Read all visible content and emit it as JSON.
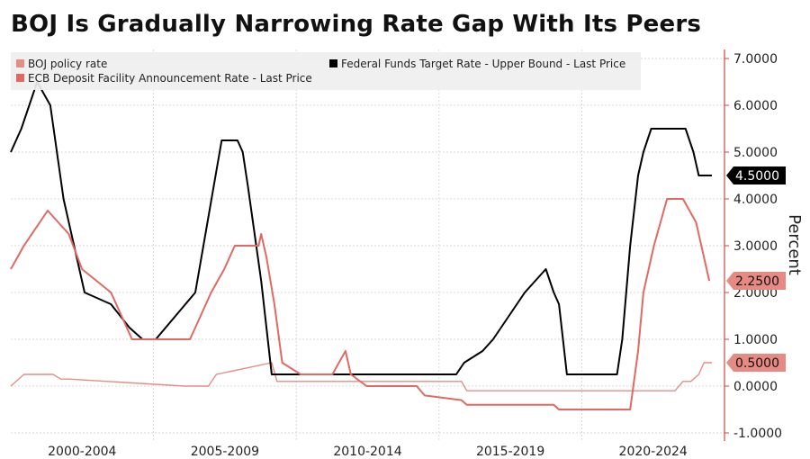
{
  "chart_data": {
    "title": "BOJ Is Gradually Narrowing Rate Gap With Its Peers",
    "type": "line",
    "ylabel": "Percent",
    "ylim": [
      -1,
      7
    ],
    "y_ticks": [
      "7.0000",
      "6.0000",
      "5.0000",
      "4.0000",
      "3.0000",
      "2.0000",
      "1.0000",
      "0.0000",
      "-1.0000"
    ],
    "x_period_labels": [
      "2000-2004",
      "2005-2009",
      "2010-2014",
      "2015-2019",
      "2020-2024"
    ],
    "xlim": [
      1999.0,
      2025.6
    ],
    "grid": true,
    "legend_position": "top-left",
    "series": [
      {
        "name": "BOJ policy rate",
        "color": "#e58c85",
        "last_label": "0.5000",
        "x": [
          1999.0,
          1999.5,
          2000.6,
          2000.9,
          2001.2,
          2005.6,
          2006.5,
          2006.8,
          2008.9,
          2009.1,
          2013.2,
          2016.1,
          2016.3,
          2024.2,
          2024.5,
          2024.8,
          2025.1,
          2025.3,
          2025.6
        ],
        "y": [
          0.0,
          0.25,
          0.25,
          0.15,
          0.15,
          0.0,
          0.0,
          0.25,
          0.5,
          0.1,
          0.1,
          0.1,
          -0.1,
          -0.1,
          0.1,
          0.1,
          0.25,
          0.5,
          0.5
        ]
      },
      {
        "name": "Federal Funds Target Rate - Upper Bound - Last Price",
        "color": "#000000",
        "last_label": "4.5000",
        "x": [
          1999.0,
          1999.4,
          2000.0,
          2000.5,
          2001.0,
          2001.8,
          2002.8,
          2003.5,
          2004.0,
          2004.5,
          2006.0,
          2007.0,
          2007.6,
          2007.8,
          2008.0,
          2008.5,
          2008.9,
          2015.9,
          2016.2,
          2016.9,
          2017.3,
          2017.9,
          2018.5,
          2019.3,
          2019.6,
          2019.8,
          2020.1,
          2020.2,
          2022.0,
          2022.2,
          2022.5,
          2022.8,
          2023.0,
          2023.3,
          2023.6,
          2024.6,
          2024.9,
          2025.1,
          2025.6
        ],
        "y": [
          5.0,
          5.5,
          6.5,
          6.0,
          4.0,
          2.0,
          1.75,
          1.25,
          1.0,
          1.0,
          2.0,
          5.25,
          5.25,
          5.0,
          4.25,
          2.25,
          0.25,
          0.25,
          0.5,
          0.75,
          1.0,
          1.5,
          2.0,
          2.5,
          2.0,
          1.75,
          0.25,
          0.25,
          0.25,
          1.0,
          3.0,
          4.5,
          5.0,
          5.5,
          5.5,
          5.5,
          5.0,
          4.5,
          4.5
        ]
      },
      {
        "name": "ECB Deposit Facility Announcement Rate - Last Price",
        "color": "#e06a62",
        "last_label": "2.2500",
        "x": [
          1999.0,
          1999.5,
          2000.4,
          2000.8,
          2001.2,
          2001.7,
          2002.8,
          2003.2,
          2003.6,
          2005.8,
          2006.2,
          2006.6,
          2007.1,
          2007.5,
          2008.4,
          2008.5,
          2008.7,
          2009.0,
          2009.3,
          2010.0,
          2011.2,
          2011.7,
          2011.9,
          2012.5,
          2014.4,
          2014.7,
          2016.1,
          2016.3,
          2019.6,
          2019.8,
          2022.5,
          2022.8,
          2023.0,
          2023.4,
          2023.9,
          2024.5,
          2025.0,
          2025.5
        ],
        "y": [
          2.5,
          3.0,
          3.75,
          3.5,
          3.25,
          2.5,
          2.0,
          1.5,
          1.0,
          1.0,
          1.5,
          2.0,
          2.5,
          3.0,
          3.0,
          3.25,
          2.75,
          1.75,
          0.5,
          0.25,
          0.25,
          0.75,
          0.25,
          0.0,
          0.0,
          -0.2,
          -0.3,
          -0.4,
          -0.4,
          -0.5,
          -0.5,
          0.75,
          2.0,
          3.0,
          4.0,
          4.0,
          3.5,
          2.25
        ]
      }
    ]
  }
}
